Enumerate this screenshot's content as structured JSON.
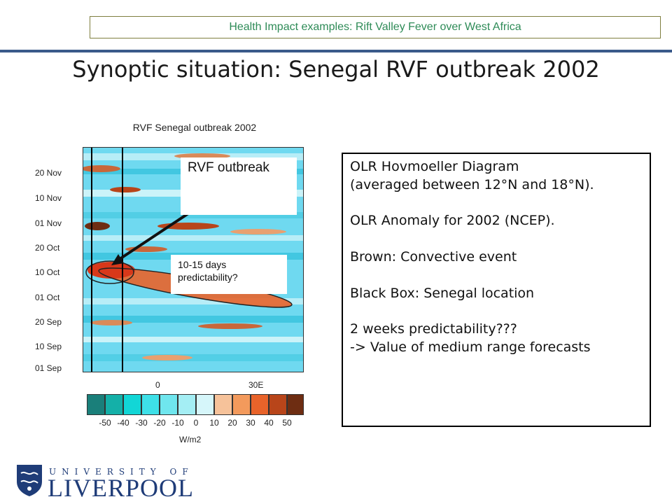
{
  "header": {
    "banner": "Health Impact examples: Rift Valley Fever over West Africa"
  },
  "slide": {
    "title": "Synoptic situation: Senegal RVF outbreak 2002"
  },
  "chart": {
    "title": "RVF Senegal outbreak 2002",
    "dates": [
      "20 Nov",
      "10 Nov",
      "01 Nov",
      "20 Oct",
      "10 Oct",
      "01 Oct",
      "20 Sep",
      "10 Sep",
      "01 Sep"
    ],
    "x_ticks": [
      "0",
      "30E"
    ],
    "colorbar_labels": [
      "-50",
      "-40",
      "-30",
      "-20",
      "-10",
      "0",
      "10",
      "20",
      "30",
      "40",
      "50"
    ],
    "colorbar_colors": [
      "#1a7f7a",
      "#14b0a8",
      "#12d6d6",
      "#3ee0e8",
      "#6fe6ee",
      "#a4eef4",
      "#d6f6fa",
      "#f6c29a",
      "#f39a5c",
      "#e8632a",
      "#b8451a",
      "#6e2d12"
    ],
    "units": "W/m2"
  },
  "callouts": {
    "rvf": "RVF outbreak",
    "predictability": "10-15 days predictability?"
  },
  "info": {
    "line1": "OLR Hovmoeller Diagram",
    "line2": "(averaged between 12°N and 18°N).",
    "line3": "OLR Anomaly for 2002 (NCEP).",
    "line4": "Brown: Convective event",
    "line5": "Black Box: Senegal location",
    "line6": "2 weeks predictability???",
    "line7": "-> Value of medium range forecasts"
  },
  "logo": {
    "top": "UNIVERSITY OF",
    "name": "LIVERPOOL"
  }
}
